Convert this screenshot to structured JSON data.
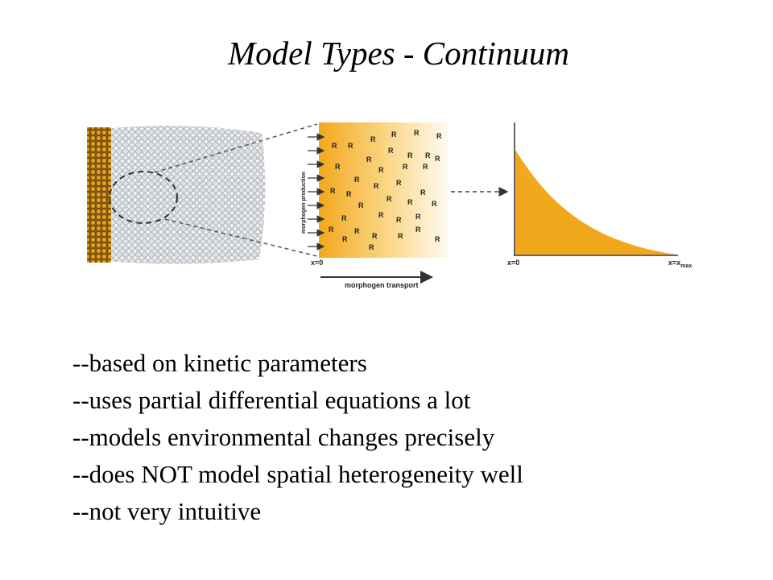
{
  "title": "Model Types - Continuum",
  "figure": {
    "production_label": "morphogen production",
    "receptor_label": "R",
    "box_origin_label": "x=0",
    "transport_label": "morphogen transport",
    "graph_origin_label": "x=0",
    "graph_end_label": {
      "text": "x=x",
      "sub": "max"
    }
  },
  "bullets": [
    "--based on kinetic parameters",
    "--uses partial differential equations a lot",
    "--models environmental changes precisely",
    "--does NOT model spatial heterogeneity well",
    "--not very intuitive"
  ]
}
